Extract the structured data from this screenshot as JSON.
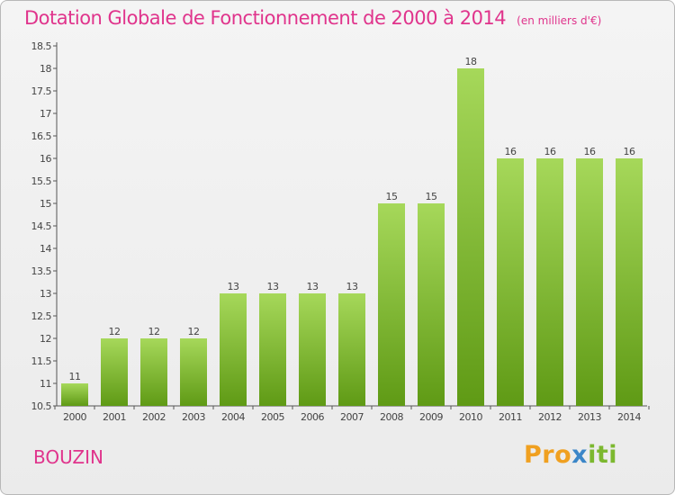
{
  "title": "Dotation Globale de Fonctionnement de 2000 à 2014",
  "subtitle": "(en milliers d'€)",
  "commune": "BOUZIN",
  "logo": {
    "part1": "Pro",
    "part2": "x",
    "part3": "iti"
  },
  "colors": {
    "title": "#e0348c",
    "bar_light": "#a6d85a",
    "bar_dark": "#5f9a15",
    "axis": "#555555"
  },
  "chart_data": {
    "type": "bar",
    "title": "Dotation Globale de Fonctionnement de 2000 à 2014",
    "subtitle": "(en milliers d'€)",
    "xlabel": "",
    "ylabel": "",
    "categories": [
      "2000",
      "2001",
      "2002",
      "2003",
      "2004",
      "2005",
      "2006",
      "2007",
      "2008",
      "2009",
      "2010",
      "2011",
      "2012",
      "2013",
      "2014"
    ],
    "values": [
      11,
      12,
      12,
      12,
      13,
      13,
      13,
      13,
      15,
      15,
      18,
      16,
      16,
      16,
      16
    ],
    "data_labels": [
      "11",
      "12",
      "12",
      "12",
      "13",
      "13",
      "13",
      "13",
      "15",
      "15",
      "18",
      "16",
      "16",
      "16",
      "16"
    ],
    "ylim": [
      10.5,
      18.5
    ],
    "yticks": [
      "10.5",
      "11",
      "11.5",
      "12",
      "12.5",
      "13",
      "13.5",
      "14",
      "14.5",
      "15",
      "15.5",
      "16",
      "16.5",
      "17",
      "17.5",
      "18",
      "18.5"
    ],
    "grid": false,
    "legend": "none"
  }
}
